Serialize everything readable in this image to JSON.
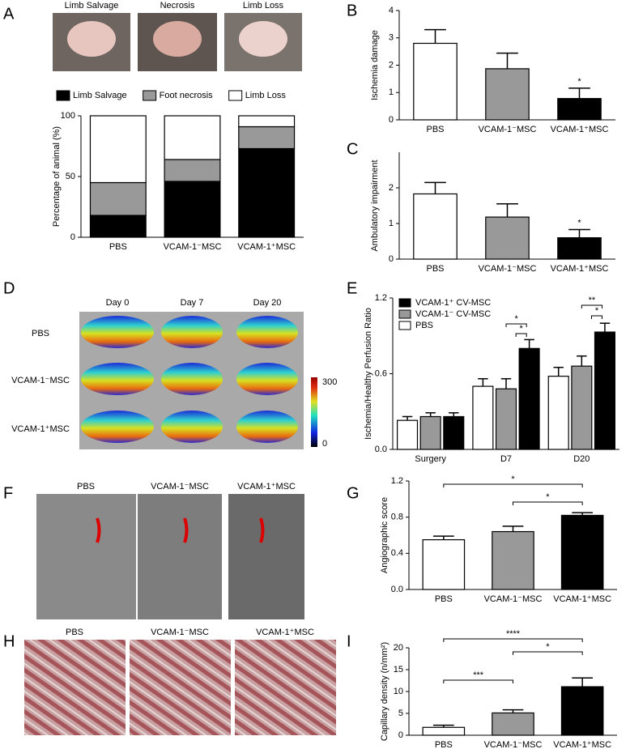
{
  "panel_labels": [
    "A",
    "B",
    "C",
    "D",
    "E",
    "F",
    "G",
    "H",
    "I"
  ],
  "photos_a": [
    "Limb Salvage",
    "Necrosis",
    "Limb Loss"
  ],
  "perfusion": {
    "columns": [
      "Day 0",
      "Day 7",
      "Day 20"
    ],
    "rows": [
      "PBS",
      "VCAM-1⁻MSC",
      "VCAM-1⁺MSC"
    ],
    "scale": [
      "300",
      "0"
    ]
  },
  "angiography": [
    "PBS",
    "VCAM-1⁻MSC",
    "VCAM-1⁺MSC"
  ],
  "histology": [
    "PBS",
    "VCAM-1⁻MSC",
    "VCAM-1⁺MSC"
  ],
  "chart_data": [
    {
      "type": "stacked_bar",
      "ylabel": "Percentage of animal (%)",
      "categories": [
        "PBS",
        "VCAM-1⁻MSC",
        "VCAM-1⁺MSC"
      ],
      "series": [
        {
          "name": "Limb Salvage",
          "color": "#000000",
          "values": [
            18,
            46,
            73
          ]
        },
        {
          "name": "Foot necrosis",
          "color": "#999999",
          "values": [
            27,
            18,
            18
          ]
        },
        {
          "name": "Limb Loss",
          "color": "#ffffff",
          "values": [
            55,
            36,
            9
          ]
        }
      ],
      "ylim": [
        0,
        100
      ],
      "yticks": [
        0,
        50,
        100
      ],
      "legend": "top"
    },
    {
      "type": "bar",
      "ylabel": "Ischemia damage",
      "categories": [
        "PBS",
        "VCAM-1⁻MSC",
        "VCAM-1⁺MSC"
      ],
      "values": [
        2.8,
        1.87,
        0.78
      ],
      "errors": [
        0.5,
        0.57,
        0.38
      ],
      "colors": [
        "#ffffff",
        "#999999",
        "#000000"
      ],
      "ylim": [
        0,
        4
      ],
      "yticks": [
        0,
        1,
        2,
        3,
        4
      ],
      "annotations": [
        "*"
      ]
    },
    {
      "type": "bar",
      "ylabel": "Ambulatory impairment",
      "categories": [
        "PBS",
        "VCAM-1⁻MSC",
        "VCAM-1⁺MSC"
      ],
      "values": [
        1.83,
        1.18,
        0.6
      ],
      "errors": [
        0.32,
        0.37,
        0.23
      ],
      "colors": [
        "#ffffff",
        "#999999",
        "#000000"
      ],
      "ylim": [
        0,
        3
      ],
      "yticks": [
        0,
        1,
        2
      ],
      "annotations": [
        "*"
      ]
    },
    {
      "type": "grouped_bar",
      "ylabel": "Ischemia/Healthy Perfusion Ratio",
      "categories": [
        "Surgery",
        "D7",
        "D20"
      ],
      "series": [
        {
          "name": "PBS",
          "color": "#ffffff",
          "values": [
            0.23,
            0.5,
            0.58
          ],
          "errors": [
            0.03,
            0.06,
            0.07
          ]
        },
        {
          "name": "VCAM-1⁻ CV-MSC",
          "color": "#999999",
          "values": [
            0.26,
            0.48,
            0.66
          ],
          "errors": [
            0.03,
            0.08,
            0.08
          ]
        },
        {
          "name": "VCAM-1⁺ CV-MSC",
          "color": "#000000",
          "values": [
            0.26,
            0.8,
            0.93
          ],
          "errors": [
            0.03,
            0.07,
            0.07
          ]
        }
      ],
      "ylim": [
        0,
        1.2
      ],
      "yticks": [
        {
          "value": 0,
          "label": "0.0"
        },
        0.6,
        1.2
      ],
      "legend": "upper left",
      "annotations": [
        "*",
        "*",
        "**",
        "*"
      ]
    },
    {
      "type": "bar",
      "ylabel": "Angiographic score",
      "categories": [
        "PBS",
        "VCAM-1⁻MSC",
        "VCAM-1⁺MSC"
      ],
      "values": [
        0.55,
        0.64,
        0.82
      ],
      "errors": [
        0.04,
        0.06,
        0.03
      ],
      "colors": [
        "#ffffff",
        "#999999",
        "#000000"
      ],
      "ylim": [
        0,
        1.2
      ],
      "yticks": [
        {
          "value": 0,
          "label": "0.0"
        },
        0.4,
        0.8,
        1.2
      ],
      "annotations": [
        "*",
        "*"
      ]
    },
    {
      "type": "bar",
      "ylabel": "Capillary density (n/mm²)",
      "categories": [
        "PBS",
        "VCAM-1⁻MSC",
        "VCAM-1⁺MSC"
      ],
      "values": [
        1.8,
        5.1,
        11.1
      ],
      "errors": [
        0.5,
        0.7,
        2
      ],
      "colors": [
        "#ffffff",
        "#999999",
        "#000000"
      ],
      "ylim": [
        0,
        20
      ],
      "yticks": [
        0,
        5,
        10,
        15,
        20
      ],
      "annotations": [
        "***",
        "****",
        "*"
      ]
    }
  ]
}
